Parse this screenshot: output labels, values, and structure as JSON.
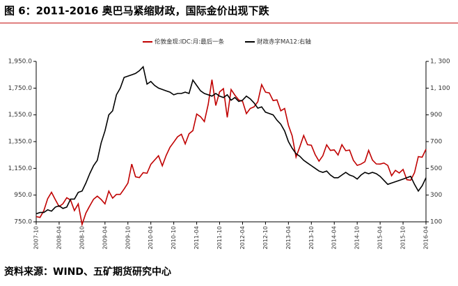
{
  "chart_data": {
    "type": "line",
    "title": "图 6：2011-2016 奥巴马紧缩财政，国际金价出现下跌",
    "source": "资料来源：WIND、五矿期货研究中心",
    "categories": [
      "2007-10",
      null,
      null,
      null,
      null,
      null,
      "2008-04",
      null,
      null,
      null,
      null,
      null,
      "2008-10",
      null,
      null,
      null,
      null,
      null,
      "2009-04",
      null,
      null,
      null,
      null,
      null,
      "2009-10",
      null,
      null,
      null,
      null,
      null,
      "2010-04",
      null,
      null,
      null,
      null,
      null,
      "2010-10",
      null,
      null,
      null,
      null,
      null,
      "2011-04",
      null,
      null,
      null,
      null,
      null,
      "2011-10",
      null,
      null,
      null,
      null,
      null,
      "2012-04",
      null,
      null,
      null,
      null,
      null,
      "2012-10",
      null,
      null,
      null,
      null,
      null,
      "2013-04",
      null,
      null,
      null,
      null,
      null,
      "2013-10",
      null,
      null,
      null,
      null,
      null,
      "2014-04",
      null,
      null,
      null,
      null,
      null,
      "2014-10",
      null,
      null,
      null,
      null,
      null,
      "2015-04",
      null,
      null,
      null,
      null,
      null,
      "2015-10",
      null,
      null,
      null,
      null,
      null,
      "2016-04"
    ],
    "series": [
      {
        "name": "伦敦金现:IDC:月:最后一条",
        "color": "#c00000",
        "values": [
          789,
          783,
          834,
          923,
          971,
          916,
          864,
          885,
          930,
          913,
          834,
          884,
          730,
          815,
          869,
          919,
          942,
          917,
          884,
          980,
          927,
          955,
          955,
          996,
          1040,
          1182,
          1087,
          1081,
          1118,
          1113,
          1180,
          1212,
          1244,
          1169,
          1246,
          1307,
          1346,
          1386,
          1405,
          1333,
          1409,
          1432,
          1556,
          1536,
          1500,
          1628,
          1813,
          1620,
          1722,
          1746,
          1531,
          1740,
          1697,
          1662,
          1651,
          1559,
          1598,
          1610,
          1648,
          1776,
          1720,
          1714,
          1657,
          1662,
          1580,
          1598,
          1472,
          1393,
          1234,
          1312,
          1396,
          1327,
          1323,
          1253,
          1204,
          1244,
          1326,
          1284,
          1288,
          1250,
          1327,
          1282,
          1287,
          1210,
          1172,
          1182,
          1199,
          1284,
          1212,
          1183,
          1182,
          1190,
          1172,
          1095,
          1135,
          1115,
          1142,
          1065,
          1061,
          1118,
          1238,
          1233,
          1293
        ]
      },
      {
        "name": "财政赤字MA12:右轴",
        "color": "#000000",
        "axis": "y2",
        "values": [
          160,
          170,
          170,
          190,
          180,
          210,
          220,
          200,
          210,
          270,
          270,
          320,
          330,
          390,
          460,
          520,
          560,
          690,
          780,
          900,
          930,
          1050,
          1100,
          1180,
          1190,
          1200,
          1210,
          1230,
          1260,
          1130,
          1150,
          1120,
          1100,
          1090,
          1080,
          1070,
          1050,
          1060,
          1060,
          1070,
          1060,
          1160,
          1120,
          1080,
          1060,
          1050,
          1040,
          1060,
          1040,
          1030,
          1050,
          1010,
          1030,
          1000,
          1010,
          1040,
          1020,
          990,
          950,
          960,
          920,
          910,
          900,
          860,
          830,
          780,
          700,
          650,
          610,
          590,
          560,
          540,
          520,
          500,
          480,
          470,
          480,
          450,
          430,
          430,
          450,
          470,
          450,
          440,
          420,
          450,
          470,
          460,
          470,
          460,
          440,
          410,
          380,
          390,
          400,
          410,
          420,
          430,
          440,
          380,
          330,
          370,
          430
        ]
      }
    ],
    "ylim": [
      750,
      1950
    ],
    "yticks": [
      {
        "value": 750,
        "label": "750.0"
      },
      {
        "value": 950,
        "label": "950.0"
      },
      {
        "value": 1150,
        "label": "1,150.0"
      },
      {
        "value": 1350,
        "label": "1,350.0"
      },
      {
        "value": 1550,
        "label": "1,550.0"
      },
      {
        "value": 1750,
        "label": "1,750.0"
      },
      {
        "value": 1950,
        "label": "1,950.0"
      }
    ],
    "y2lim": [
      100,
      1300
    ],
    "y2ticks": [
      100,
      300,
      500,
      700,
      900,
      {
        "value": 1100,
        "label": "1, 100"
      },
      {
        "value": 1300,
        "label": "1, 300"
      }
    ],
    "legend": "top",
    "grid": false
  }
}
